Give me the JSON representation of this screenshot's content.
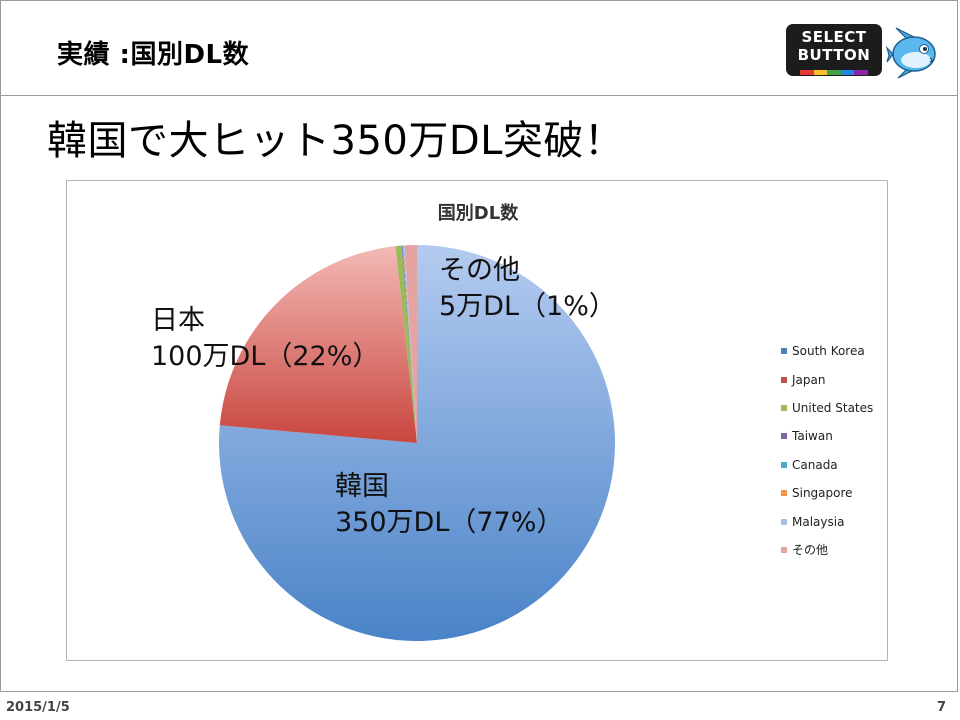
{
  "header": {
    "title": "実績 :国別DL数",
    "logo_line1": "SELECT",
    "logo_line2": "BUTTON",
    "logo_stripe_colors": [
      "#e53935",
      "#fbc02d",
      "#43a047",
      "#1e88e5",
      "#8e24aa"
    ]
  },
  "headline": "韓国で大ヒット350万DL突破！",
  "chart_data": {
    "type": "pie",
    "title": "国別DL数",
    "categories": [
      "South Korea",
      "Japan",
      "United States",
      "Taiwan",
      "Canada",
      "Singapore",
      "Malaysia",
      "その他"
    ],
    "values": [
      77,
      22,
      0.5,
      0.05,
      0.05,
      0.05,
      0.1,
      1
    ],
    "colors": [
      "#4f81bd",
      "#c0504d",
      "#9bbb59",
      "#8064a2",
      "#4bacc6",
      "#f79646",
      "#a6c0e4",
      "#e5a3a1"
    ],
    "legend_position": "right",
    "annotations": {
      "korea_line1": "韓国",
      "korea_line2": "350万DL（77%）",
      "japan_line1": "日本",
      "japan_line2": "100万DL（22%）",
      "other_line1": "その他",
      "other_line2": "5万DL（1%）"
    }
  },
  "footer": {
    "date": "2015/1/5",
    "page": "7"
  }
}
